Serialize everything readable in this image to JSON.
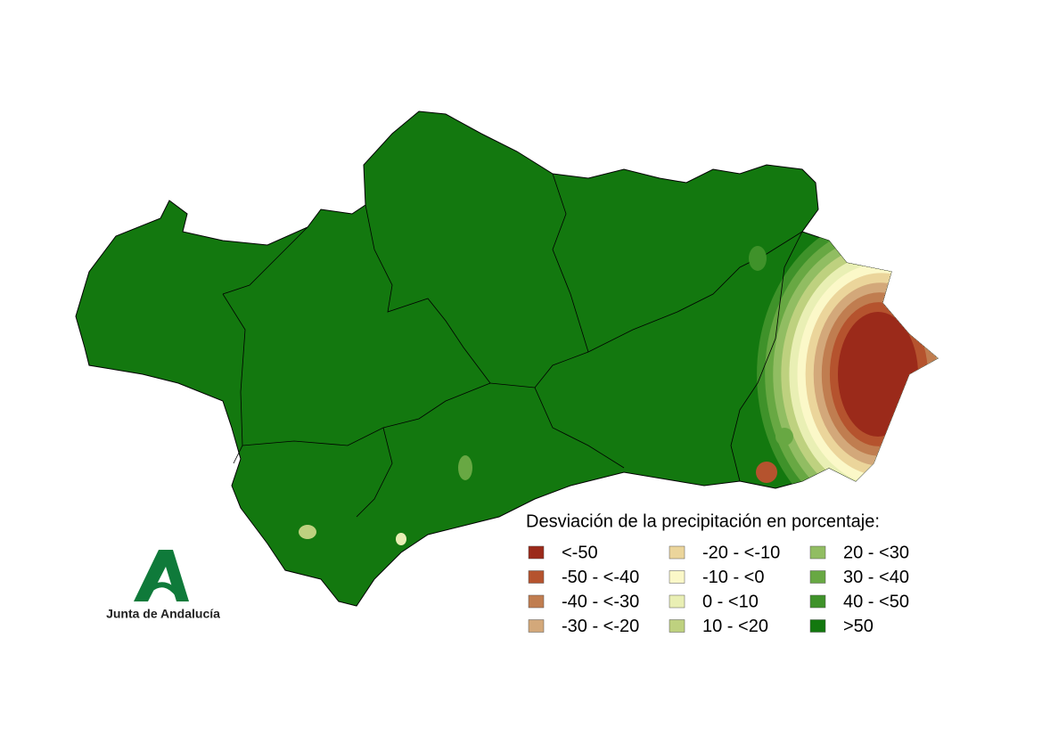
{
  "legend": {
    "title": "Desviación de la precipitación en porcentaje:",
    "items": [
      {
        "label": "<-50",
        "color": "#9b2a1a"
      },
      {
        "label": "-50 - <-40",
        "color": "#b5532e"
      },
      {
        "label": "-40 - <-30",
        "color": "#c07d50"
      },
      {
        "label": "-30 - <-20",
        "color": "#d3a87a"
      },
      {
        "label": "-20 - <-10",
        "color": "#ebd59b"
      },
      {
        "label": "-10 - <0",
        "color": "#fbf8c8"
      },
      {
        "label": "0 - <10",
        "color": "#e9efb4"
      },
      {
        "label": "10 - <20",
        "color": "#bed17f"
      },
      {
        "label": "20 - <30",
        "color": "#91bd62"
      },
      {
        "label": "30 - <40",
        "color": "#68a843"
      },
      {
        "label": "40 - <50",
        "color": "#3f922a"
      },
      {
        "label": ">50",
        "color": "#13780f"
      }
    ]
  },
  "logo": {
    "text": "Junta de Andalucía"
  }
}
